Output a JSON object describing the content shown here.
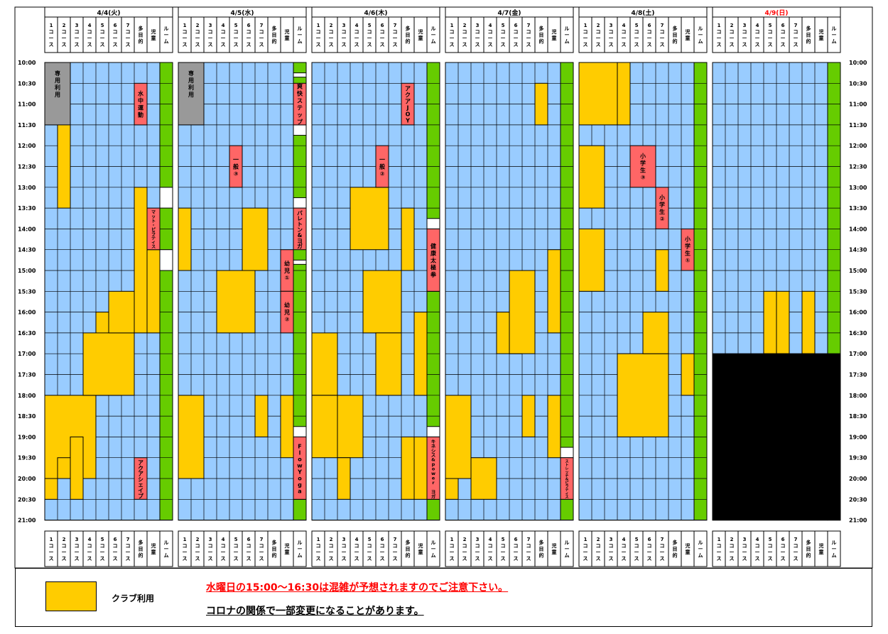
{
  "times": [
    "10:00",
    "10:30",
    "11:00",
    "11:30",
    "12:00",
    "12:30",
    "13:00",
    "13:30",
    "14:00",
    "14:30",
    "15:00",
    "15:30",
    "16:00",
    "16:30",
    "17:00",
    "17:30",
    "18:00",
    "18:30",
    "19:00",
    "19:30",
    "20:00",
    "20:30",
    "21:00"
  ],
  "column_labels": {
    "courses": [
      "1\nコ\nー\nス",
      "2\nコ\nー\nス",
      "3\nコ\nー\nス",
      "4\nコ\nー\nス",
      "5\nコ\nー\nス",
      "6\nコ\nー\nス",
      "7\nコ\nー\nス"
    ],
    "tamokuteki": "多\n目\n的",
    "jido": "児\n童",
    "room": "ル\nー\nム"
  },
  "colors": {
    "pool": "#99CCFF",
    "club": "#FFCC00",
    "lesson": "#FF6666",
    "room": "#66CC00",
    "reserved": "#999999",
    "closed": "#000000",
    "sunday": "#FF0000"
  },
  "days": [
    {
      "label": "4/4(火)",
      "sunday": false,
      "club": [
        [
          1,
          1,
          0,
          7
        ],
        [
          0,
          3,
          16,
          20
        ],
        [
          4,
          5,
          12,
          16
        ],
        [
          3,
          6,
          13,
          16
        ],
        [
          5,
          6,
          11,
          13
        ],
        [
          7,
          7,
          6,
          13
        ],
        [
          8,
          8,
          9,
          13
        ],
        [
          1,
          1,
          19,
          20
        ],
        [
          2,
          2,
          18,
          21
        ],
        [
          0,
          0,
          20,
          21
        ]
      ],
      "gray": [
        [
          0,
          0,
          0,
          3,
          "専\n用\n利\n用"
        ]
      ],
      "lessons": [
        [
          7,
          7,
          1,
          3,
          "水\n中\n運\n動"
        ],
        [
          7,
          7,
          19,
          21,
          "アクアシェイプ"
        ],
        [
          8,
          8,
          7,
          9,
          "マット・ピラティス"
        ]
      ],
      "room_breaks": [
        [
          6,
          7
        ],
        [
          9,
          10
        ]
      ],
      "black": []
    },
    {
      "label": "4/5(水)",
      "sunday": false,
      "club": [
        [
          0,
          0,
          7,
          10
        ],
        [
          0,
          1,
          16,
          20
        ],
        [
          3,
          5,
          10,
          13
        ],
        [
          5,
          6,
          7,
          10
        ],
        [
          6,
          6,
          16,
          18
        ],
        [
          8,
          8,
          16,
          19
        ]
      ],
      "gray": [
        [
          0,
          0,
          0,
          3,
          "専\n用\n利\n用"
        ]
      ],
      "lessons": [
        [
          4,
          4,
          4,
          6,
          "一\n般\n③"
        ],
        [
          8,
          8,
          9,
          11,
          "幼\n児\n①"
        ],
        [
          8,
          8,
          11,
          13,
          "幼\n児\n②"
        ],
        [
          9,
          9,
          1,
          3,
          "爽\n快\nス\nテ\nッ\nプ"
        ],
        [
          9,
          9,
          7,
          9,
          "バレトン&ヨガ"
        ],
        [
          9,
          9,
          18,
          21,
          "Flow\nYoga"
        ]
      ],
      "room_breaks": [
        [
          0.5,
          0.5
        ],
        [
          3,
          3.5
        ],
        [
          6.5,
          7
        ],
        [
          9.5,
          9.5
        ],
        [
          17.5,
          18
        ],
        [
          20.5,
          21
        ]
      ],
      "black": []
    },
    {
      "label": "4/6(木)",
      "sunday": false,
      "club": [
        [
          0,
          1,
          13,
          16
        ],
        [
          0,
          1,
          16,
          19
        ],
        [
          2,
          3,
          16,
          19
        ],
        [
          3,
          5,
          6,
          9
        ],
        [
          4,
          6,
          10,
          13
        ],
        [
          5,
          6,
          13,
          16
        ],
        [
          7,
          7,
          7,
          10
        ],
        [
          8,
          8,
          12,
          16
        ],
        [
          2,
          2,
          19,
          21
        ],
        [
          7,
          7,
          18,
          21
        ],
        [
          8,
          8,
          18,
          21
        ]
      ],
      "gray": [],
      "lessons": [
        [
          5,
          5,
          4,
          6,
          "一\n般\n②"
        ],
        [
          7,
          7,
          1,
          3,
          "アクアJOY"
        ],
        [
          9,
          9,
          8,
          11,
          "健\n康\n太\n極\n拳"
        ],
        [
          9,
          9,
          18,
          21,
          "キネシス&power ヨガ"
        ]
      ],
      "room_breaks": [
        [
          7.5,
          8
        ],
        [
          10.5,
          11
        ],
        [
          17.5,
          18
        ],
        [
          20.5,
          21
        ]
      ],
      "black": []
    },
    {
      "label": "4/7(金)",
      "sunday": false,
      "club": [
        [
          0,
          1,
          16,
          20
        ],
        [
          2,
          3,
          19,
          21
        ],
        [
          0,
          0,
          20,
          21
        ],
        [
          4,
          5,
          12,
          14
        ],
        [
          5,
          6,
          10,
          14
        ],
        [
          6,
          6,
          16,
          18
        ],
        [
          7,
          7,
          1,
          3
        ],
        [
          8,
          8,
          9,
          13
        ],
        [
          8,
          8,
          16,
          19
        ]
      ],
      "gray": [],
      "lessons": [
        [
          9,
          9,
          19,
          21,
          "ストレッチ&ピラティス"
        ]
      ],
      "room_breaks": [
        [
          18.5,
          19
        ]
      ],
      "black": []
    },
    {
      "label": "4/8(土)",
      "sunday": false,
      "club": [
        [
          0,
          2,
          0,
          3
        ],
        [
          3,
          3,
          0,
          3
        ],
        [
          0,
          1,
          4,
          7
        ],
        [
          0,
          1,
          8,
          11
        ],
        [
          3,
          6,
          14,
          18
        ],
        [
          5,
          6,
          12,
          14
        ],
        [
          6,
          6,
          9,
          11
        ],
        [
          8,
          8,
          14,
          16
        ]
      ],
      "gray": [],
      "lessons": [
        [
          4,
          5,
          4,
          6,
          "小\n学\n生\n③"
        ],
        [
          6,
          6,
          6,
          8,
          "小\n学\n生\n②"
        ],
        [
          8,
          8,
          8,
          10,
          "小\n学\n生\n①"
        ]
      ],
      "room_breaks": [],
      "black": []
    },
    {
      "label": "4/9(日)",
      "sunday": true,
      "club": [
        [
          4,
          4,
          11,
          14
        ],
        [
          5,
          5,
          11,
          14
        ],
        [
          7,
          7,
          11,
          14
        ]
      ],
      "gray": [],
      "lessons": [],
      "room_breaks": [],
      "black": [
        [
          0,
          9,
          14,
          22
        ]
      ]
    }
  ],
  "legend": {
    "label": "クラブ利用"
  },
  "notices": [
    "水曜日の15:00～16:30は混雑が予想されますのでご注意下さい。",
    "コロナの関係で一部変更になることがあります。"
  ]
}
